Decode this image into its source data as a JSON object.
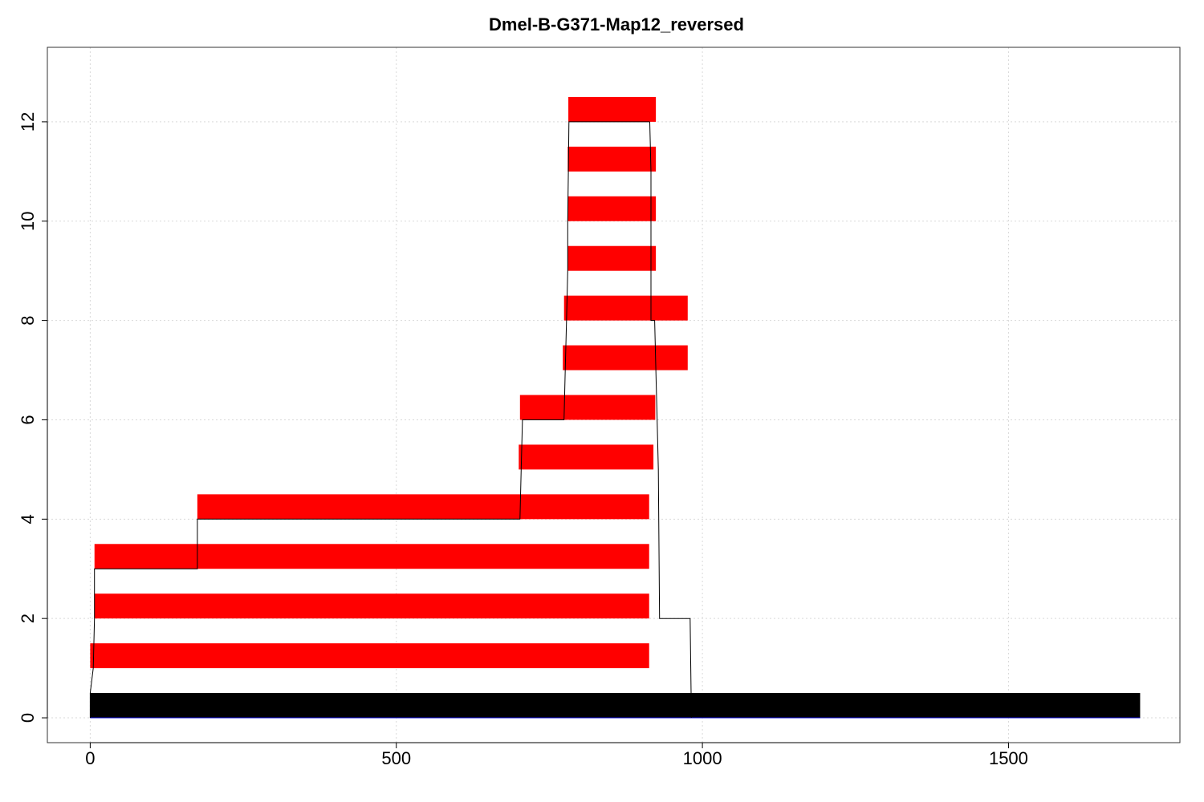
{
  "chart_data": {
    "type": "bar",
    "title": "Dmel-B-G371-Map12_reversed",
    "xlabel": "",
    "ylabel": "",
    "xlim": [
      -70,
      1780
    ],
    "ylim": [
      -0.5,
      13.5
    ],
    "x_ticks": [
      0,
      500,
      1000,
      1500
    ],
    "y_ticks": [
      0,
      2,
      4,
      6,
      8,
      10,
      12
    ],
    "grid": true,
    "colors": {
      "segment": "#ff0000",
      "reference": "#000000",
      "step_line": "#000000",
      "baseline": "#0000cc"
    },
    "reference": {
      "y": 0,
      "x_start": 0,
      "x_end": 1715
    },
    "segments": [
      {
        "y": 1,
        "x_start": 0,
        "x_end": 913
      },
      {
        "y": 2,
        "x_start": 7,
        "x_end": 913
      },
      {
        "y": 3,
        "x_start": 7,
        "x_end": 913
      },
      {
        "y": 4,
        "x_start": 175,
        "x_end": 913
      },
      {
        "y": 5,
        "x_start": 700,
        "x_end": 920
      },
      {
        "y": 6,
        "x_start": 702,
        "x_end": 923
      },
      {
        "y": 7,
        "x_start": 772,
        "x_end": 976
      },
      {
        "y": 8,
        "x_start": 774,
        "x_end": 976
      },
      {
        "y": 9,
        "x_start": 780,
        "x_end": 924
      },
      {
        "y": 10,
        "x_start": 780,
        "x_end": 924
      },
      {
        "y": 11,
        "x_start": 780,
        "x_end": 924
      },
      {
        "y": 12,
        "x_start": 781,
        "x_end": 924
      }
    ],
    "step_left": [
      [
        0,
        0
      ],
      [
        0,
        0.5
      ],
      [
        5,
        1
      ],
      [
        7,
        2
      ],
      [
        7,
        3
      ],
      [
        175,
        3
      ],
      [
        175,
        4
      ],
      [
        702,
        4
      ],
      [
        704,
        5
      ],
      [
        706,
        6
      ],
      [
        774,
        6
      ],
      [
        776,
        7
      ],
      [
        778,
        8
      ],
      [
        780,
        9
      ],
      [
        780,
        10
      ],
      [
        781,
        11
      ],
      [
        782,
        12
      ],
      [
        914,
        12
      ]
    ],
    "step_right": [
      [
        914,
        12
      ],
      [
        916,
        11
      ],
      [
        916,
        10
      ],
      [
        916,
        9
      ],
      [
        916,
        8
      ],
      [
        922,
        8
      ],
      [
        924,
        7
      ],
      [
        926,
        6
      ],
      [
        928,
        5
      ],
      [
        930,
        2
      ],
      [
        980,
        2
      ],
      [
        982,
        0
      ]
    ]
  }
}
